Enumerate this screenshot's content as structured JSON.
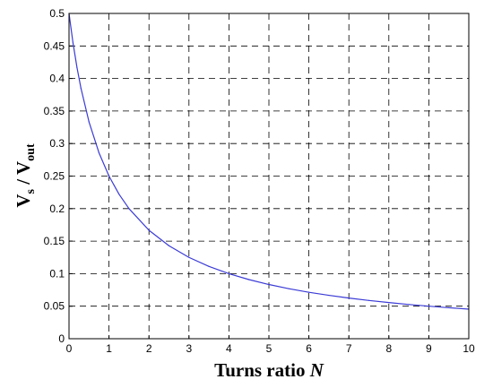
{
  "chart_data": {
    "type": "line",
    "title": "",
    "xlabel": {
      "main": "Turns ratio ",
      "italic": "N"
    },
    "ylabel": {
      "v1": "V",
      "sub1": "s",
      "sep": " / ",
      "v2": "V",
      "sub2": "out"
    },
    "xlim": [
      0,
      10
    ],
    "ylim": [
      0,
      0.5
    ],
    "x_ticks": [
      "0",
      "1",
      "2",
      "3",
      "4",
      "5",
      "6",
      "7",
      "8",
      "9",
      "10"
    ],
    "y_ticks": [
      "0",
      "0.05",
      "0.1",
      "0.15",
      "0.2",
      "0.25",
      "0.3",
      "0.35",
      "0.4",
      "0.45",
      "0.5"
    ],
    "grid": true,
    "grid_style": "dashed",
    "series": [
      {
        "color": "#3b3bd6",
        "x": [
          0,
          0.1,
          0.2,
          0.3,
          0.5,
          0.75,
          1,
          1.25,
          1.5,
          2,
          2.5,
          3,
          3.5,
          4,
          4.5,
          5,
          5.5,
          6,
          6.5,
          7,
          7.5,
          8,
          8.5,
          9,
          9.5,
          10
        ],
        "y": [
          0.5,
          0.4545,
          0.4167,
          0.3846,
          0.3333,
          0.2857,
          0.25,
          0.2222,
          0.2,
          0.1667,
          0.1429,
          0.125,
          0.1111,
          0.1,
          0.0909,
          0.0833,
          0.0769,
          0.0714,
          0.0667,
          0.0625,
          0.0588,
          0.0556,
          0.0526,
          0.05,
          0.0476,
          0.0455
        ]
      }
    ]
  }
}
